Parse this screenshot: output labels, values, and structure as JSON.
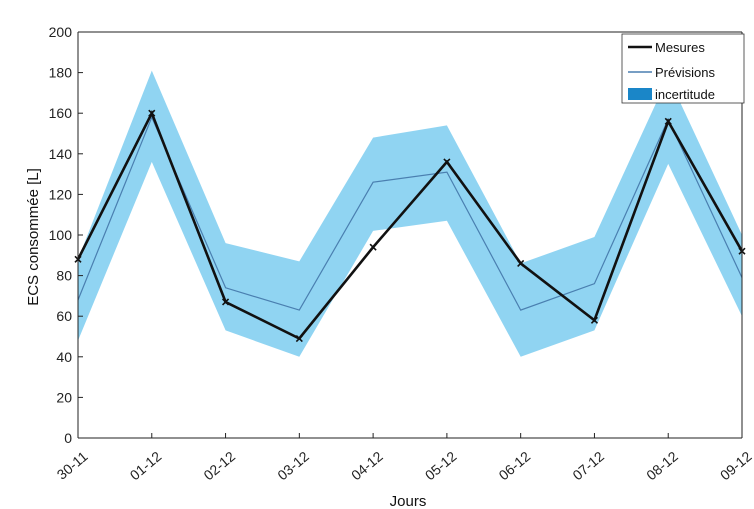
{
  "chart_data": {
    "type": "line",
    "categories": [
      "30-11",
      "01-12",
      "02-12",
      "03-12",
      "04-12",
      "05-12",
      "06-12",
      "07-12",
      "08-12",
      "09-12"
    ],
    "xlabel": "Jours",
    "ylabel": "ECS consommée [L]",
    "ylim": [
      0,
      200
    ],
    "yticks": [
      0,
      20,
      40,
      60,
      80,
      100,
      120,
      140,
      160,
      180,
      200
    ],
    "grid": false,
    "legend_position": "top-right",
    "series": [
      {
        "name": "Mesures",
        "role": "line",
        "color": "#111111",
        "marker": "x",
        "values": [
          88,
          160,
          67,
          49,
          94,
          136,
          86,
          58,
          156,
          92
        ]
      },
      {
        "name": "Prévisions",
        "role": "line",
        "color": "#4a7fb0",
        "values": [
          68,
          158,
          74,
          63,
          126,
          131,
          63,
          76,
          157,
          79
        ]
      },
      {
        "name": "incertitude",
        "role": "band",
        "color": "#7ccdf0",
        "lower": [
          48,
          136,
          53,
          40,
          102,
          107,
          40,
          53,
          135,
          60
        ],
        "upper": [
          88,
          181,
          96,
          87,
          148,
          154,
          86,
          99,
          178,
          100
        ]
      }
    ]
  }
}
